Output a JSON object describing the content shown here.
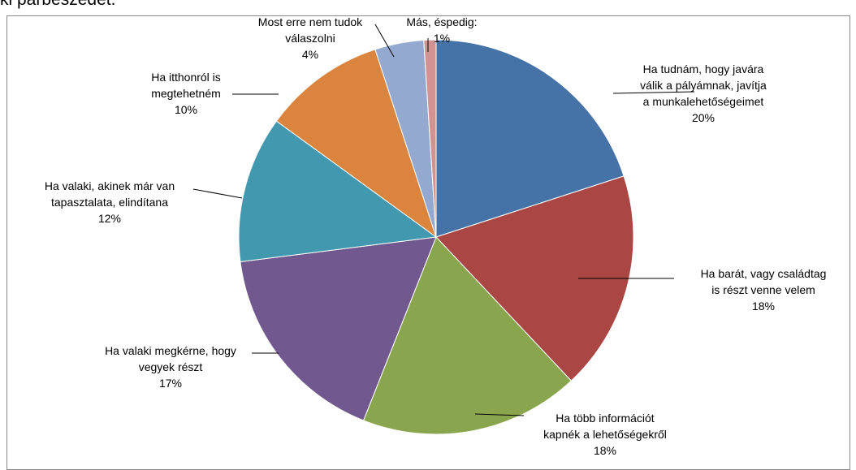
{
  "document": {
    "partial_text": "ki párbeszédet."
  },
  "chart_data": {
    "type": "pie",
    "slices": [
      {
        "lines": [
          "Ha tudnám, hogy javára",
          "válik a pályámnak, javítja",
          "a munkalehetőségeimet"
        ],
        "pct_label": "20%",
        "value": 20,
        "color": "#4572A7"
      },
      {
        "lines": [
          "Ha barát, vagy családtag",
          "is részt venne velem"
        ],
        "pct_label": "18%",
        "value": 18,
        "color": "#AA4643"
      },
      {
        "lines": [
          "Ha több információt",
          "kapnék a lehetőségekről"
        ],
        "pct_label": "18%",
        "value": 18,
        "color": "#89A54E"
      },
      {
        "lines": [
          "Ha valaki megkérne, hogy",
          "vegyek részt"
        ],
        "pct_label": "17%",
        "value": 17,
        "color": "#71588F"
      },
      {
        "lines": [
          "Ha valaki, akinek már van",
          "tapasztalata, elindítana"
        ],
        "pct_label": "12%",
        "value": 12,
        "color": "#4198AF"
      },
      {
        "lines": [
          "Ha itthonról is",
          "megtehetném"
        ],
        "pct_label": "10%",
        "value": 10,
        "color": "#DB843D"
      },
      {
        "lines": [
          "Most erre nem tudok",
          "válaszolni"
        ],
        "pct_label": "4%",
        "value": 4,
        "color": "#93A9CF"
      },
      {
        "lines": [
          "Más, éspedig:"
        ],
        "pct_label": "1%",
        "value": 1,
        "color": "#D19392"
      }
    ]
  }
}
